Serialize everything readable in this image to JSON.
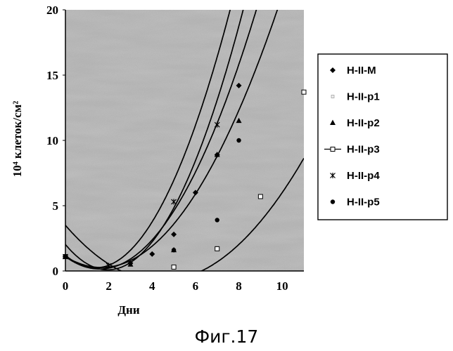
{
  "chart_data": {
    "type": "scatter",
    "xlabel": "Дни",
    "ylabel": "10⁴ клеток/см²",
    "xlim": [
      0,
      11
    ],
    "ylim": [
      0,
      20
    ],
    "xticks": [
      "0",
      "2",
      "4",
      "6",
      "8",
      "10"
    ],
    "yticks": [
      "0",
      "5",
      "10",
      "15",
      "20"
    ],
    "legend_position": "right",
    "background": "gray-textured",
    "trendlines": "polynomial",
    "series": [
      {
        "name": "H-II-M",
        "marker": "diamond",
        "points": [
          [
            0,
            1.1
          ],
          [
            3,
            0.6
          ],
          [
            4,
            1.3
          ],
          [
            5,
            2.8
          ],
          [
            6,
            6.0
          ],
          [
            7,
            8.9
          ],
          [
            8,
            14.2
          ]
        ],
        "fit": [
          2.03,
          -1.99,
          0.51
        ]
      },
      {
        "name": "H-II-p1",
        "marker": "square-small",
        "points": [
          [
            0,
            1.1
          ],
          [
            5,
            0.3
          ],
          [
            7,
            1.8
          ],
          [
            9,
            5.7
          ],
          [
            11,
            13.7
          ]
        ],
        "fit": [
          3.5,
          -1.92,
          0.217
        ]
      },
      {
        "name": "H-II-p2",
        "marker": "triangle",
        "points": [
          [
            0,
            1.1
          ],
          [
            3,
            0.5
          ],
          [
            5,
            1.6
          ],
          [
            7,
            8.9
          ],
          [
            8,
            11.5
          ]
        ],
        "fit": [
          1.1,
          -1.0,
          0.3
        ]
      },
      {
        "name": "H-II-p3",
        "marker": "square-open",
        "points": [
          [
            0,
            1.1
          ],
          [
            5,
            0.3
          ],
          [
            7,
            1.7
          ],
          [
            9,
            5.7
          ],
          [
            11,
            13.7
          ]
        ]
      },
      {
        "name": "H-II-p4",
        "marker": "x",
        "points": [
          [
            0,
            1.1
          ],
          [
            2,
            0.4
          ],
          [
            5,
            5.3
          ],
          [
            7,
            11.2
          ]
        ],
        "fit": [
          1.2,
          -1.4,
          0.51
        ]
      },
      {
        "name": "H-II-p5",
        "marker": "circle",
        "points": [
          [
            0,
            1.1
          ],
          [
            5,
            1.6
          ],
          [
            7,
            3.9
          ],
          [
            8,
            10.0
          ]
        ],
        "fit": [
          1.1,
          -1.2,
          0.38
        ]
      }
    ]
  },
  "caption": "Фиг.17"
}
